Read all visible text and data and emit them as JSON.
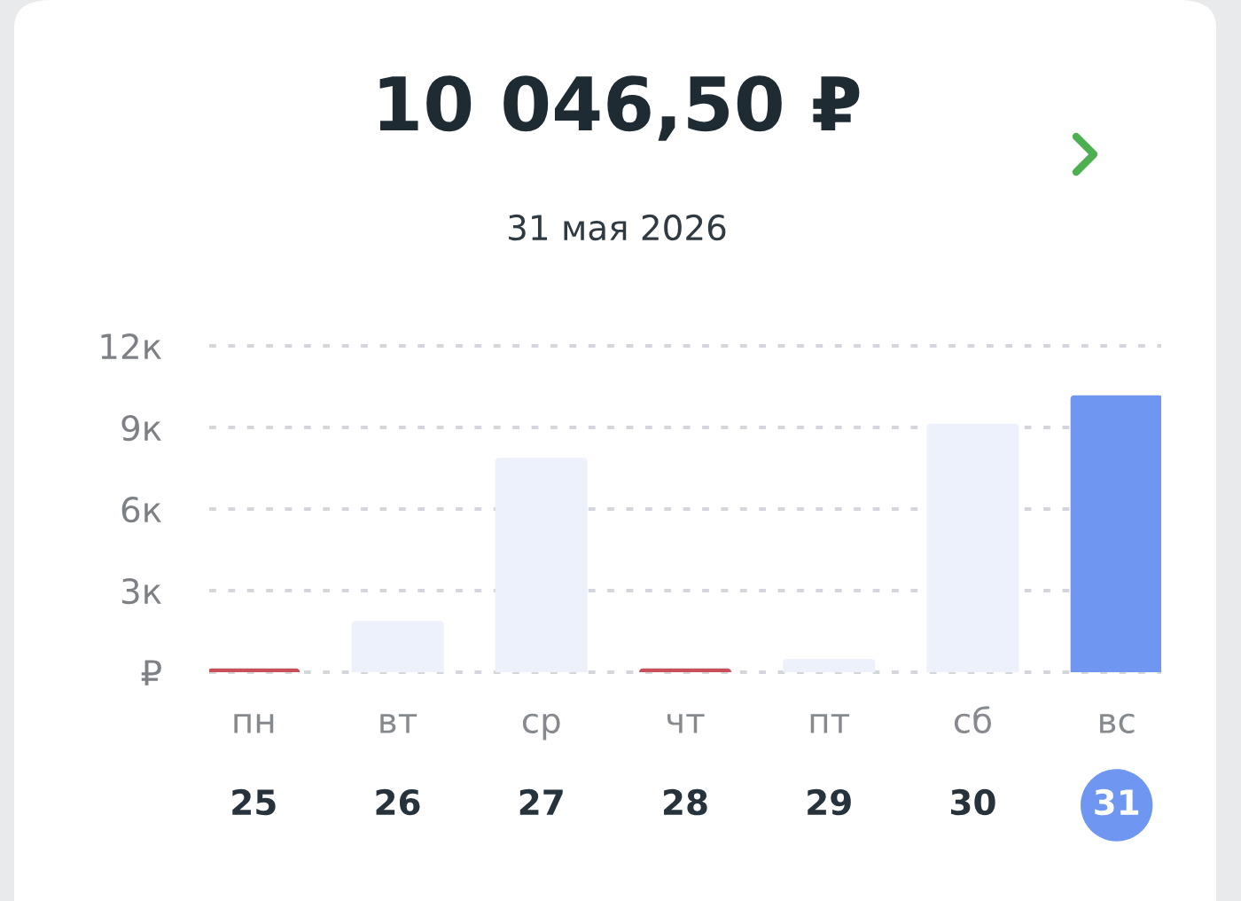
{
  "chart_data": {
    "type": "bar",
    "title": "10 046,50 ₽",
    "subtitle": "31 мая 2026",
    "categories": [
      "пн\n25",
      "вт\n26",
      "ср\n27",
      "чт\n28",
      "пт\n29",
      "сб\n30",
      "вс\n31"
    ],
    "values": [
      0,
      1.75,
      7.75,
      0,
      0.35,
      9,
      10.05
    ],
    "colors": [
      "#c9505a",
      "#edf1fc",
      "#edf1fc",
      "#c9505a",
      "#edf1fc",
      "#edf1fc",
      "#6f96f0"
    ],
    "ylim": [
      0,
      12
    ],
    "yticks": [
      {
        "value": 0,
        "label": "₽"
      },
      {
        "value": 3,
        "label": "3к"
      },
      {
        "value": 6,
        "label": "6к"
      },
      {
        "value": 9,
        "label": "9к"
      },
      {
        "value": 12,
        "label": "12к"
      }
    ],
    "grid": "y"
  }
}
